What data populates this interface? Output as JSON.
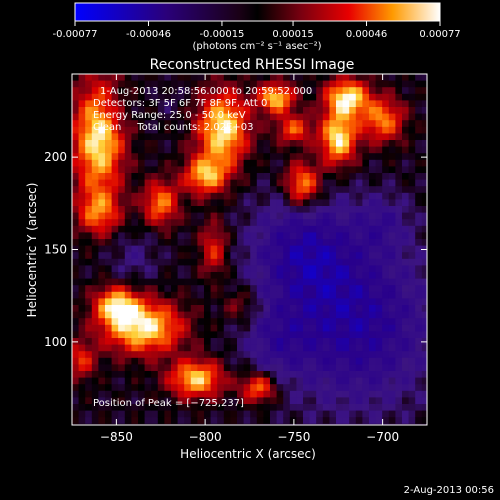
{
  "colorbar": {
    "tick_labels": [
      "-0.00077",
      "-0.00046",
      "-0.00015",
      "0.00015",
      "0.00046",
      "0.00077"
    ],
    "unit_label": "(photons cm⁻² s⁻¹ asec⁻²)"
  },
  "chart_data": {
    "type": "heatmap",
    "title": "Reconstructed RHESSI Image",
    "xlabel": "Heliocentric X (arcsec)",
    "ylabel": "Heliocentric Y (arcsec)",
    "xlim": [
      -875,
      -675
    ],
    "ylim": [
      55,
      245
    ],
    "x_ticks": [
      -850,
      -800,
      -750,
      -700
    ],
    "x_tick_labels": [
      "−850",
      "−800",
      "−750",
      "−700"
    ],
    "y_ticks": [
      100,
      150,
      200
    ],
    "y_tick_labels": [
      "100",
      "150",
      "200"
    ],
    "color_range": [
      -0.00077,
      0.00077
    ],
    "peak": [
      -725,
      237
    ],
    "colors": {
      "low": "#0000ff",
      "mid": "#000000",
      "high": "#ffffff"
    }
  },
  "annotations": {
    "time_line": "1-Aug-2013 20:58:56.000 to 20:59:52.000",
    "detectors_line": "Detectors: 3F 5F 6F 7F 8F 9F, Att 0",
    "energy_line": "Energy Range: 25.0 - 50.0 keV",
    "clean_line": "Clean     Total counts: 2.02E+03",
    "peak_line": "Position of Peak = [−725,237]"
  },
  "footer": {
    "timestamp": "2-Aug-2013 00:56"
  }
}
